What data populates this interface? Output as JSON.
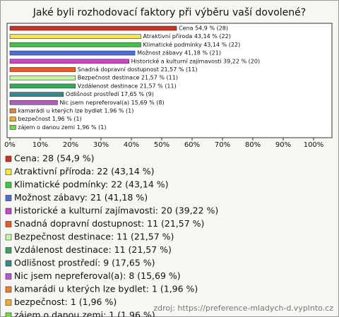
{
  "chart_data": {
    "type": "bar",
    "orientation": "horizontal",
    "title": "Jaké byli rozhodovací faktory při výběru vaší dovolené?",
    "categories": [
      "Cena",
      "Atraktivní příroda",
      "Klimatické podmínky",
      "Možnost zábavy",
      "Historické a kulturní zajímavosti",
      "Snadná dopravní dostupnost",
      "Bezpečnost destinace",
      "Vzdálenost destinace",
      "Odlišnost prostředí",
      "Nic jsem nepreferoval(a)",
      "kamarádi u kterých lze bydlet",
      "bezpečnost",
      "zájem o danou zemi"
    ],
    "values": [
      54.9,
      43.14,
      43.14,
      41.18,
      39.22,
      21.57,
      21.57,
      21.57,
      17.65,
      15.69,
      1.96,
      1.96,
      1.96
    ],
    "counts": [
      28,
      22,
      22,
      21,
      20,
      11,
      11,
      11,
      9,
      8,
      1,
      1,
      1
    ],
    "value_labels": [
      "Cena 54,9 % (28)",
      "Atraktivní příroda 43,14 % (22)",
      "Klimatické podmínky 43,14 % (22)",
      "Možnost zábavy 41,18 % (21)",
      "Historické a kulturní zajímavosti 39,22 % (20)",
      "Snadná dopravní dostupnost 21,57 % (11)",
      "Bezpečnost destinace 21,57 % (11)",
      "Vzdálenost destinace 21,57 % (11)",
      "Odlišnost prostředí 17,65 % (9)",
      "Nic jsem nepreferoval(a) 15,69 % (8)",
      "kamarádi u kterých lze bydlet 1,96 % (1)",
      "bezpečnost 1,96 % (1)",
      "zájem o danou zemi 1,96 % (1)"
    ],
    "legend_labels": [
      "Cena: 28 (54,9 %)",
      "Atraktivní příroda: 22 (43,14 %)",
      "Klimatické podmínky: 22 (43,14 %)",
      "Možnost zábavy: 21 (41,18 %)",
      "Historické a kulturní zajímavosti: 20 (39,22 %)",
      "Snadná dopravní dostupnost: 11 (21,57 %)",
      "Bezpečnost destinace: 11 (21,57 %)",
      "Vzdálenost destinace: 11 (21,57 %)",
      "Odlišnost prostředí: 9 (17,65 %)",
      "Nic jsem nepreferoval(a): 8 (15,69 %)",
      "kamarádi u kterých lze bydlet: 1 (1,96 %)",
      "bezpečnost: 1 (1,96 %)",
      "zájem o danou zemi: 1 (1,96 %)"
    ],
    "colors": [
      "#c8321e",
      "#f5e642",
      "#3cc83c",
      "#4a6ee0",
      "#c846c8",
      "#e85a28",
      "#c8f5a8",
      "#32aa5a",
      "#328c8c",
      "#b45ac8",
      "#e8822d",
      "#f5aa28",
      "#78d746"
    ],
    "xlim": [
      0,
      100
    ],
    "xticks": [
      {
        "value": 0,
        "label": "0%"
      },
      {
        "value": 10,
        "label": "10%"
      },
      {
        "value": 20,
        "label": "20%"
      },
      {
        "value": 30,
        "label": "30%"
      },
      {
        "value": 40,
        "label": "40%"
      },
      {
        "value": 50,
        "label": "50%"
      },
      {
        "value": 60,
        "label": "60%"
      },
      {
        "value": 70,
        "label": "70%"
      },
      {
        "value": 80,
        "label": "80%"
      },
      {
        "value": 90,
        "label": "90%"
      },
      {
        "value": 100,
        "label": "100%"
      }
    ],
    "source": "zdroj: https://preference-mladych-d.vyplnto.cz"
  }
}
